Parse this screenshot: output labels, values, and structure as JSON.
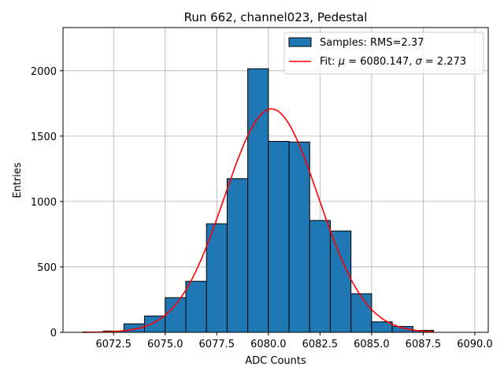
{
  "chart_data": {
    "type": "bar",
    "title": "Run 662, channel023, Pedestal",
    "xlabel": "ADC Counts",
    "ylabel": "Entries",
    "xlim": [
      6070.05,
      6090.65
    ],
    "ylim": [
      0,
      2330
    ],
    "grid": true,
    "legend_placement": "top-right",
    "x_ticks": [
      6072.5,
      6075.0,
      6077.5,
      6080.0,
      6082.5,
      6085.0,
      6087.5,
      6090.0
    ],
    "x_tick_labels": [
      "6072.5",
      "6075.0",
      "6077.5",
      "6080.0",
      "6082.5",
      "6085.0",
      "6087.5",
      "6090.0"
    ],
    "y_ticks": [
      0,
      500,
      1000,
      1500,
      2000
    ],
    "y_tick_labels": [
      "0",
      "500",
      "1000",
      "1500",
      "2000"
    ],
    "histogram": {
      "name": "Samples: RMS=2.37",
      "color": "#1f77b4",
      "edgecolor": "#000000",
      "bin_edges": [
        6071,
        6072,
        6073,
        6074,
        6075,
        6076,
        6077,
        6078,
        6079,
        6080,
        6081,
        6082,
        6083,
        6084,
        6085,
        6086,
        6087,
        6088
      ],
      "counts": [
        2,
        10,
        65,
        125,
        265,
        390,
        830,
        1175,
        2015,
        1460,
        1455,
        855,
        775,
        295,
        80,
        45,
        15
      ]
    },
    "fit": {
      "name": "Fit: μ = 6080.147, σ = 2.273",
      "color": "#ff0000",
      "mu": 6080.147,
      "sigma": 2.273,
      "amplitude": 1708,
      "x_range": [
        6071,
        6088
      ]
    }
  },
  "legend": {
    "hist_label_prefix": "Samples: RMS=2.37",
    "fit_label_prefix": "Fit: ",
    "fit_mu_symbol": "μ",
    "fit_mu_value": " = 6080.147, ",
    "fit_sigma_symbol": "σ",
    "fit_sigma_value": " = 2.273"
  }
}
